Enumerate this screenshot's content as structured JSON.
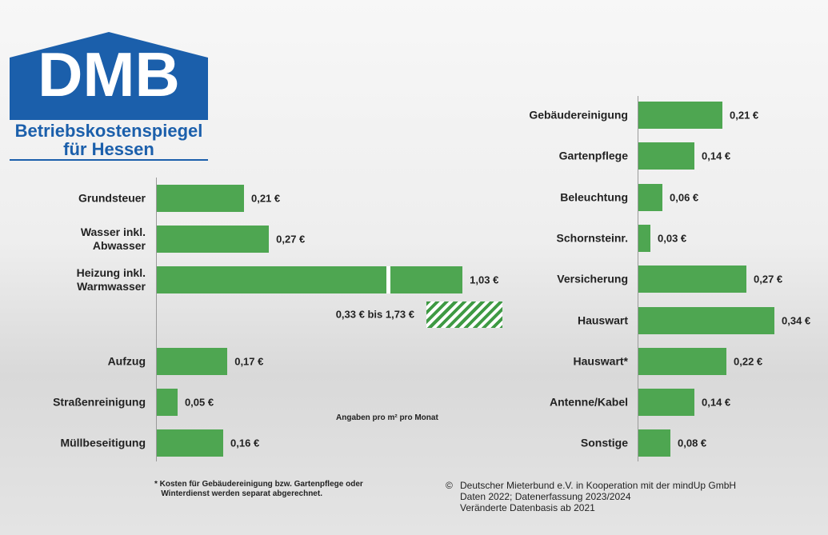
{
  "header": {
    "logo": "DMB",
    "subtitle": "Betriebskostenspiegel\nfür Hessen"
  },
  "unit_note": "Angaben pro m² pro Monat",
  "footnote": "* Kosten für Gebäudereinigung bzw. Gartenpflege oder\n   Winterdienst werden separat abgerechnet.",
  "source": "Deutscher Mieterbund e.V. in Kooperation mit der mindUp GmbH\nDaten 2022; Datenerfassung 2023/2024\nVeränderte Datenbasis ab 2021",
  "copyright_sign": "©",
  "chart_data": [
    {
      "type": "bar",
      "orientation": "horizontal",
      "color": "#4ea651",
      "categories": [
        "Grundsteuer",
        "Wasser inkl.\nAbwasser",
        "Heizung inkl.\nWarmwasser",
        "Aufzug",
        "Straßenreinigung",
        "Müllbeseitigung"
      ],
      "values": [
        0.21,
        0.27,
        1.03,
        0.17,
        0.05,
        0.16
      ],
      "value_labels": [
        "0,21 €",
        "0,27 €",
        "1,03 €",
        "0,17 €",
        "0,05 €",
        "0,16 €"
      ],
      "annotation": "0,33 € bis 1,73 €"
    },
    {
      "type": "bar",
      "orientation": "horizontal",
      "color": "#4ea651",
      "categories": [
        "Gebäudereinigung",
        "Gartenpflege",
        "Beleuchtung",
        "Schornsteinr.",
        "Versicherung",
        "Hauswart",
        "Hauswart*",
        "Antenne/Kabel",
        "Sonstige"
      ],
      "values": [
        0.21,
        0.14,
        0.06,
        0.03,
        0.27,
        0.34,
        0.22,
        0.14,
        0.08
      ],
      "value_labels": [
        "0,21 €",
        "0,14 €",
        "0,06 €",
        "0,03 €",
        "0,27 €",
        "0,34 €",
        "0,22 €",
        "0,14 €",
        "0,08 €"
      ]
    }
  ]
}
